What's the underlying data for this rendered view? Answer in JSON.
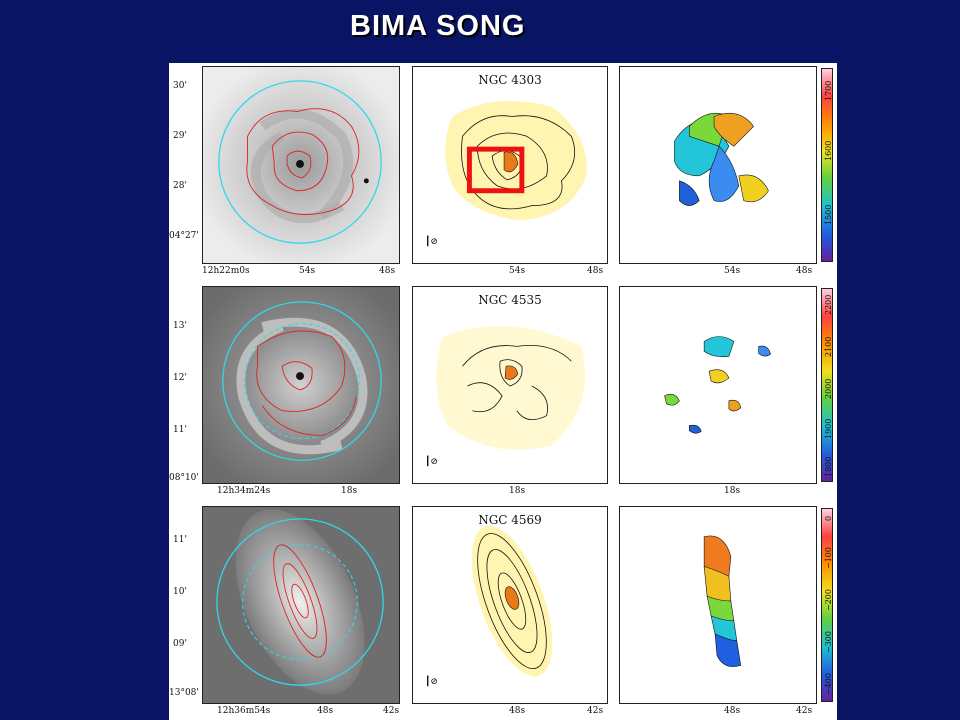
{
  "slide": {
    "title": "BIMA SONG"
  },
  "rows": [
    {
      "galaxy": "NGC 4303",
      "dec_labels": [
        "30'",
        "29'",
        "28'",
        "04°27'"
      ],
      "ra_labels_left": [
        "12h22m0s",
        "54s",
        "48s"
      ],
      "ra_labels_mid": [
        "54s",
        "48s"
      ],
      "ra_labels_right": [
        "54s",
        "48s"
      ],
      "colorbar_labels": [
        "1700",
        "1600",
        "1500"
      ]
    },
    {
      "galaxy": "NGC 4535",
      "dec_labels": [
        "13'",
        "12'",
        "11'",
        "08°10'"
      ],
      "ra_labels_left": [
        "12h34m24s",
        "18s"
      ],
      "ra_labels_mid": [
        "18s"
      ],
      "ra_labels_right": [
        "18s"
      ],
      "colorbar_labels": [
        "2200",
        "2100",
        "2000",
        "1900",
        "1800"
      ]
    },
    {
      "galaxy": "NGC 4569",
      "dec_labels": [
        "11'",
        "10'",
        "09'",
        "13°08'"
      ],
      "ra_labels_left": [
        "12h36m54s",
        "48s",
        "42s"
      ],
      "ra_labels_mid": [
        "48s",
        "42s"
      ],
      "ra_labels_right": [
        "48s",
        "42s"
      ],
      "colorbar_labels": [
        "0",
        "−100",
        "−200",
        "−300",
        "−400"
      ]
    }
  ],
  "colors": {
    "background": "#0a1464",
    "contour_red": "#e02020",
    "ring_cyan": "#30d8e8",
    "highlight_box": "#ee1111",
    "emission_yellow": "#fff4b0"
  }
}
